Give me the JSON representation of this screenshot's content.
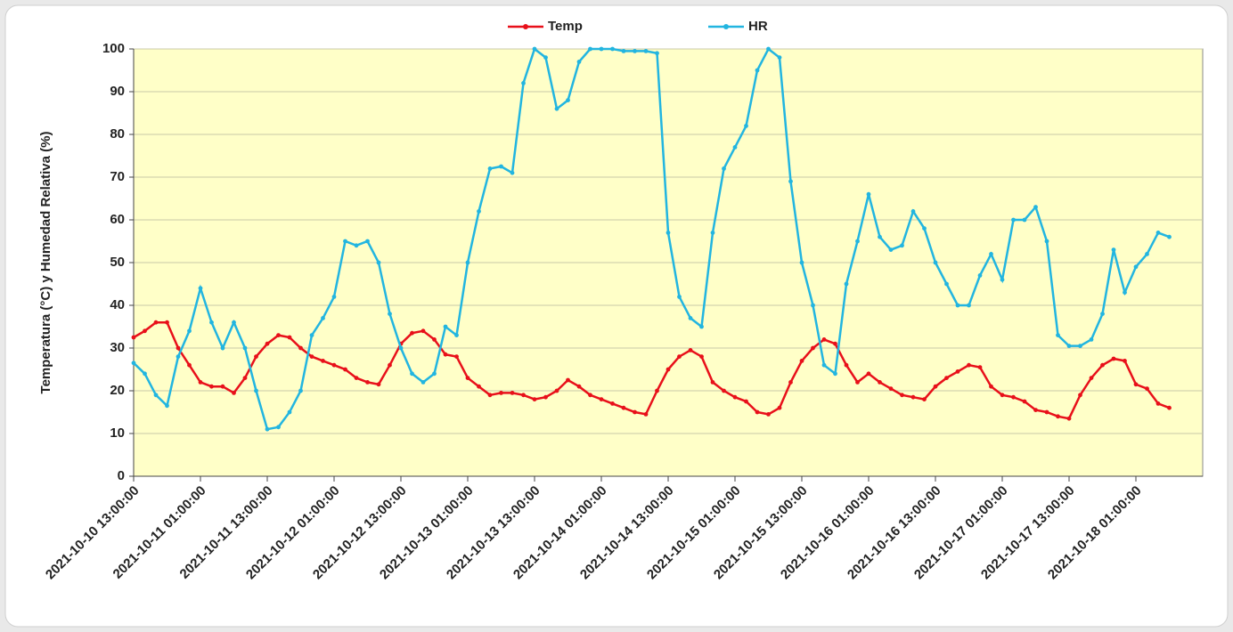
{
  "chart_data": {
    "type": "line",
    "y_label": "Temperatura (°C) y Humedad Relativa (%)",
    "categories": [
      "2021-10-10 13:00:00",
      null,
      null,
      null,
      null,
      null,
      "2021-10-11 01:00:00",
      null,
      null,
      null,
      null,
      null,
      "2021-10-11 13:00:00",
      null,
      null,
      null,
      null,
      null,
      "2021-10-12 01:00:00",
      null,
      null,
      null,
      null,
      null,
      "2021-10-12 13:00:00",
      null,
      null,
      null,
      null,
      null,
      "2021-10-13 01:00:00",
      null,
      null,
      null,
      null,
      null,
      "2021-10-13 13:00:00",
      null,
      null,
      null,
      null,
      null,
      "2021-10-14 01:00:00",
      null,
      null,
      null,
      null,
      null,
      "2021-10-14 13:00:00",
      null,
      null,
      null,
      null,
      null,
      "2021-10-15 01:00:00",
      null,
      null,
      null,
      null,
      null,
      "2021-10-15 13:00:00",
      null,
      null,
      null,
      null,
      null,
      "2021-10-16 01:00:00",
      null,
      null,
      null,
      null,
      null,
      "2021-10-16 13:00:00",
      null,
      null,
      null,
      null,
      null,
      "2021-10-17 01:00:00",
      null,
      null,
      null,
      null,
      null,
      "2021-10-17 13:00:00",
      null,
      null,
      null,
      null,
      null,
      "2021-10-18 01:00:00",
      null,
      null,
      null
    ],
    "series": [
      {
        "name": "Temp",
        "color": "#e8101a",
        "values": [
          32.5,
          34,
          36,
          36,
          30,
          26,
          22,
          21,
          21,
          19.5,
          23,
          28,
          31,
          33,
          32.5,
          30,
          28,
          27,
          26,
          25,
          23,
          22,
          21.5,
          26,
          31,
          33.5,
          34,
          32,
          28.5,
          28,
          23,
          21,
          19,
          19.5,
          19.5,
          19,
          18,
          18.5,
          20,
          22.5,
          21,
          19,
          18,
          17,
          16,
          15,
          14.5,
          20,
          25,
          28,
          29.5,
          28,
          22,
          20,
          18.5,
          17.5,
          15,
          14.5,
          16,
          22,
          27,
          30,
          32,
          31,
          26,
          22,
          24,
          22,
          20.5,
          19,
          18.5,
          18,
          21,
          23,
          24.5,
          26,
          25.5,
          21,
          19,
          18.5,
          17.5,
          15.5,
          15,
          14,
          13.5,
          19,
          23,
          26,
          27.5,
          27,
          21.5,
          20.5,
          17,
          16
        ]
      },
      {
        "name": "HR",
        "color": "#22b5e0",
        "values": [
          26.5,
          24,
          19,
          16.5,
          28,
          34,
          44,
          36,
          30,
          36,
          30,
          20,
          11,
          11.5,
          15,
          20,
          33,
          37,
          42,
          55,
          54,
          55,
          50,
          38,
          30,
          24,
          22,
          24,
          35,
          33,
          50,
          62,
          72,
          72.5,
          71,
          92,
          100,
          98,
          86,
          88,
          97,
          100,
          100,
          100,
          99.5,
          99.5,
          99.5,
          99,
          57,
          42,
          37,
          35,
          57,
          72,
          77,
          82,
          95,
          100,
          98,
          69,
          50,
          40,
          26,
          24,
          45,
          55,
          66,
          56,
          53,
          54,
          62,
          58,
          50,
          45,
          40,
          40,
          47,
          52,
          46,
          60,
          60,
          63,
          55,
          33,
          30.5,
          30.5,
          32,
          38,
          53,
          43,
          49,
          52,
          57,
          56
        ]
      }
    ],
    "ylim": [
      0,
      100
    ],
    "yticks": [
      0,
      10,
      20,
      30,
      40,
      50,
      60,
      70,
      80,
      90,
      100
    ],
    "grid": true,
    "legend": "top"
  }
}
